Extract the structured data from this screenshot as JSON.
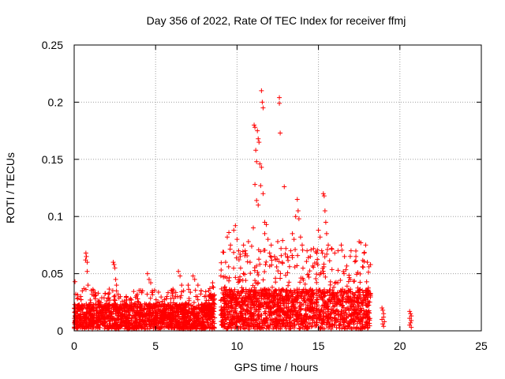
{
  "chart_data": {
    "type": "scatter",
    "title": "Day 356 of 2022, Rate Of TEC Index for receiver ffmj",
    "xlabel": "GPS time / hours",
    "ylabel": "ROTI / TECUs",
    "xlim": [
      0,
      25
    ],
    "ylim": [
      0,
      0.25
    ],
    "x_ticks": [
      0,
      5,
      10,
      15,
      20,
      25
    ],
    "y_ticks": [
      0,
      0.05,
      0.1,
      0.15,
      0.2,
      0.25
    ],
    "x_tick_labels": [
      "0",
      "5",
      "10",
      "15",
      "20",
      "25"
    ],
    "y_tick_labels": [
      "0",
      "0.05",
      "0.1",
      "0.15",
      "0.2",
      "0.25"
    ],
    "grid": true,
    "marker": "+",
    "color": "#ff0000",
    "series": [
      {
        "name": "ROTI",
        "segments": [
          {
            "x_start": 0.0,
            "x_end": 8.5,
            "base_max": 0.022,
            "scatter_max": 0.035
          },
          {
            "x_start": 8.3,
            "x_end": 8.65,
            "base_max": 0.03,
            "scatter_max": 0.04
          },
          {
            "x_start": 9.0,
            "x_end": 18.2,
            "base_max": 0.035,
            "scatter_max": 0.07
          }
        ],
        "points": [
          [
            0.05,
            0.043
          ],
          [
            0.1,
            0.032
          ],
          [
            0.2,
            0.028
          ],
          [
            0.4,
            0.03
          ],
          [
            0.5,
            0.035
          ],
          [
            0.6,
            0.037
          ],
          [
            0.7,
            0.062
          ],
          [
            0.72,
            0.068
          ],
          [
            0.75,
            0.065
          ],
          [
            0.8,
            0.06
          ],
          [
            0.8,
            0.052
          ],
          [
            0.85,
            0.04
          ],
          [
            1.1,
            0.032
          ],
          [
            1.2,
            0.035
          ],
          [
            1.3,
            0.028
          ],
          [
            1.5,
            0.025
          ],
          [
            2.0,
            0.024
          ],
          [
            2.4,
            0.06
          ],
          [
            2.45,
            0.058
          ],
          [
            2.5,
            0.055
          ],
          [
            2.55,
            0.045
          ],
          [
            2.6,
            0.04
          ],
          [
            2.6,
            0.035
          ],
          [
            2.7,
            0.032
          ],
          [
            3.2,
            0.03
          ],
          [
            3.5,
            0.027
          ],
          [
            3.9,
            0.028
          ],
          [
            4.2,
            0.035
          ],
          [
            4.5,
            0.05
          ],
          [
            4.6,
            0.045
          ],
          [
            4.7,
            0.042
          ],
          [
            4.8,
            0.035
          ],
          [
            5.2,
            0.025
          ],
          [
            5.7,
            0.03
          ],
          [
            6.1,
            0.035
          ],
          [
            6.4,
            0.052
          ],
          [
            6.5,
            0.048
          ],
          [
            6.6,
            0.04
          ],
          [
            7.0,
            0.04
          ],
          [
            7.3,
            0.048
          ],
          [
            7.4,
            0.045
          ],
          [
            7.6,
            0.04
          ],
          [
            7.8,
            0.035
          ],
          [
            8.0,
            0.03
          ],
          [
            8.5,
            0.042
          ],
          [
            8.55,
            0.038
          ],
          [
            9.3,
            0.06
          ],
          [
            9.4,
            0.082
          ],
          [
            9.5,
            0.086
          ],
          [
            9.6,
            0.075
          ],
          [
            9.8,
            0.088
          ],
          [
            9.9,
            0.092
          ],
          [
            10.0,
            0.08
          ],
          [
            10.1,
            0.07
          ],
          [
            10.2,
            0.065
          ],
          [
            10.4,
            0.075
          ],
          [
            10.5,
            0.07
          ],
          [
            10.7,
            0.078
          ],
          [
            10.8,
            0.06
          ],
          [
            10.9,
            0.074
          ],
          [
            11.0,
            0.09
          ],
          [
            11.05,
            0.18
          ],
          [
            11.1,
            0.178
          ],
          [
            11.1,
            0.128
          ],
          [
            11.15,
            0.158
          ],
          [
            11.2,
            0.148
          ],
          [
            11.2,
            0.114
          ],
          [
            11.25,
            0.175
          ],
          [
            11.3,
            0.168
          ],
          [
            11.3,
            0.11
          ],
          [
            11.35,
            0.165
          ],
          [
            11.4,
            0.146
          ],
          [
            11.45,
            0.127
          ],
          [
            11.5,
            0.21
          ],
          [
            11.5,
            0.143
          ],
          [
            11.55,
            0.2
          ],
          [
            11.6,
            0.195
          ],
          [
            11.6,
            0.12
          ],
          [
            11.7,
            0.095
          ],
          [
            11.8,
            0.093
          ],
          [
            11.9,
            0.08
          ],
          [
            11.7,
            0.085
          ],
          [
            12.0,
            0.068
          ],
          [
            12.1,
            0.075
          ],
          [
            12.3,
            0.065
          ],
          [
            12.5,
            0.078
          ],
          [
            12.6,
            0.204
          ],
          [
            12.6,
            0.199
          ],
          [
            12.65,
            0.173
          ],
          [
            12.7,
            0.072
          ],
          [
            12.8,
            0.079
          ],
          [
            12.9,
            0.126
          ],
          [
            13.0,
            0.072
          ],
          [
            13.1,
            0.065
          ],
          [
            13.3,
            0.07
          ],
          [
            13.4,
            0.085
          ],
          [
            13.5,
            0.08
          ],
          [
            13.6,
            0.1
          ],
          [
            13.7,
            0.115
          ],
          [
            13.75,
            0.105
          ],
          [
            13.8,
            0.098
          ],
          [
            13.9,
            0.082
          ],
          [
            14.0,
            0.075
          ],
          [
            14.3,
            0.07
          ],
          [
            14.5,
            0.065
          ],
          [
            14.7,
            0.072
          ],
          [
            14.9,
            0.068
          ],
          [
            15.0,
            0.088
          ],
          [
            15.1,
            0.082
          ],
          [
            15.2,
            0.07
          ],
          [
            15.3,
            0.12
          ],
          [
            15.35,
            0.118
          ],
          [
            15.4,
            0.105
          ],
          [
            15.45,
            0.095
          ],
          [
            15.5,
            0.085
          ],
          [
            15.6,
            0.075
          ],
          [
            15.8,
            0.072
          ],
          [
            16.0,
            0.068
          ],
          [
            16.2,
            0.07
          ],
          [
            16.4,
            0.075
          ],
          [
            16.6,
            0.065
          ],
          [
            17.0,
            0.07
          ],
          [
            17.3,
            0.065
          ],
          [
            17.5,
            0.078
          ],
          [
            17.6,
            0.077
          ],
          [
            17.8,
            0.068
          ],
          [
            17.9,
            0.075
          ],
          [
            18.0,
            0.06
          ],
          [
            18.1,
            0.056
          ]
        ],
        "isolated_points": [
          [
            18.9,
            0.02
          ],
          [
            18.95,
            0.018
          ],
          [
            19.0,
            0.015
          ],
          [
            19.0,
            0.012
          ],
          [
            19.05,
            0.008
          ],
          [
            18.95,
            0.006
          ],
          [
            19.0,
            0.004
          ],
          [
            18.9,
            0.01
          ],
          [
            20.6,
            0.017
          ],
          [
            20.65,
            0.015
          ],
          [
            20.7,
            0.013
          ],
          [
            20.6,
            0.011
          ],
          [
            20.7,
            0.009
          ],
          [
            20.65,
            0.007
          ],
          [
            20.6,
            0.005
          ],
          [
            20.7,
            0.003
          ]
        ]
      }
    ]
  }
}
